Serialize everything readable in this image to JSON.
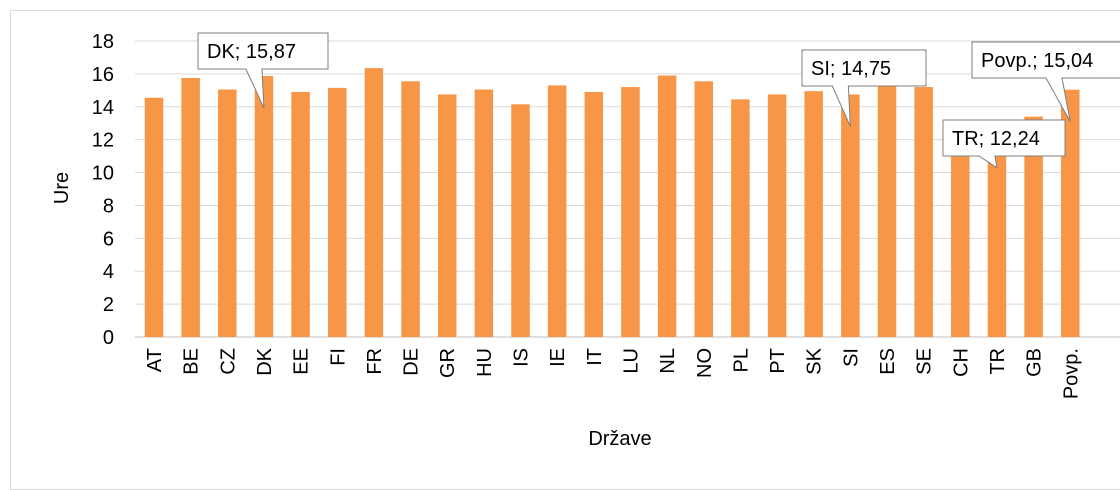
{
  "chart_data": {
    "type": "bar",
    "title": "",
    "xlabel": "Države",
    "ylabel": "Ure",
    "ylim": [
      0,
      18
    ],
    "yticks": [
      0,
      2,
      4,
      6,
      8,
      10,
      12,
      14,
      16,
      18
    ],
    "grid": true,
    "bar_color": "#f79646",
    "categories": [
      "AT",
      "BE",
      "CZ",
      "DK",
      "EE",
      "FI",
      "FR",
      "DE",
      "GR",
      "HU",
      "IS",
      "IE",
      "IT",
      "LU",
      "NL",
      "NO",
      "PL",
      "PT",
      "SK",
      "SI",
      "ES",
      "SE",
      "CH",
      "TR",
      "GB",
      "Povp."
    ],
    "values": [
      14.55,
      15.75,
      15.05,
      15.87,
      14.9,
      15.15,
      16.35,
      15.55,
      14.75,
      15.05,
      14.15,
      15.3,
      14.9,
      15.2,
      15.9,
      15.55,
      14.45,
      14.75,
      14.95,
      14.75,
      15.25,
      15.2,
      13.2,
      12.24,
      13.4,
      15.04
    ],
    "annotations": [
      {
        "category": "DK",
        "text": "DK; 15,87"
      },
      {
        "category": "SI",
        "text": "SI; 14,75"
      },
      {
        "category": "TR",
        "text": "TR; 12,24"
      },
      {
        "category": "Povp.",
        "text": "Povp.; 15,04"
      }
    ]
  }
}
